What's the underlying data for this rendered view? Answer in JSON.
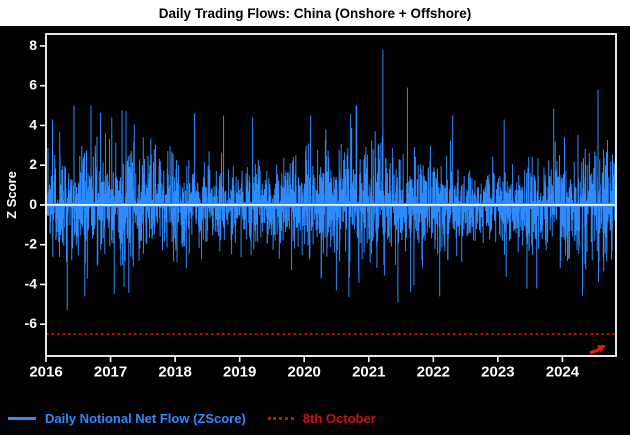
{
  "chart_data": {
    "type": "line",
    "title": "Daily Trading Flows: China (Onshore + Offshore)",
    "ylabel": "Z Score",
    "x_range": [
      2016,
      2024.83
    ],
    "ylim": [
      -7.6,
      8.6
    ],
    "x_ticks": [
      2016,
      2017,
      2018,
      2019,
      2020,
      2021,
      2022,
      2023,
      2024
    ],
    "y_ticks": [
      -6,
      -4,
      -2,
      0,
      2,
      4,
      6,
      8
    ],
    "background": "#000000",
    "frame_color": "#ffffff",
    "series": [
      {
        "name": "Daily Notional Net Flow (ZScore)",
        "color": "#2e8bff",
        "zero_line_highlight": "#ffffff",
        "generator": {
          "seed": 20161008,
          "n": 2280,
          "sd": 1.25,
          "tail_prob": 0.045,
          "tail_mult": 1.9,
          "clamp": 5.0,
          "regime_amp": 0.22,
          "regime_period": 160
        }
      }
    ],
    "notable_points": [
      {
        "x": 2016.1,
        "y": 4.3
      },
      {
        "x": 2016.33,
        "y": -5.3
      },
      {
        "x": 2016.6,
        "y": -4.6
      },
      {
        "x": 2017.02,
        "y": 4.4
      },
      {
        "x": 2018.3,
        "y": 4.6
      },
      {
        "x": 2018.75,
        "y": 4.5
      },
      {
        "x": 2019.2,
        "y": 4.4
      },
      {
        "x": 2020.1,
        "y": 4.5
      },
      {
        "x": 2020.5,
        "y": -4.3
      },
      {
        "x": 2021.22,
        "y": 7.8
      },
      {
        "x": 2021.45,
        "y": -4.9
      },
      {
        "x": 2021.6,
        "y": 5.9
      },
      {
        "x": 2022.1,
        "y": -4.6
      },
      {
        "x": 2022.3,
        "y": 4.5
      },
      {
        "x": 2023.1,
        "y": 4.3
      },
      {
        "x": 2023.6,
        "y": -4.2
      },
      {
        "x": 2024.55,
        "y": 5.8
      },
      {
        "x": 2024.83,
        "y": -6.5
      }
    ],
    "threshold": {
      "label": "8th October",
      "value": -6.5,
      "color": "#cc1111",
      "style": "dotted"
    },
    "annotation_arrow": {
      "color": "#e01a1a",
      "points_to": "last-point"
    },
    "legend": [
      {
        "label": "Daily Notional Net Flow (ZScore)",
        "color": "#2e8bff",
        "style": "solid"
      },
      {
        "label": "8th October",
        "color": "#cc1111",
        "style": "dotted"
      }
    ]
  }
}
